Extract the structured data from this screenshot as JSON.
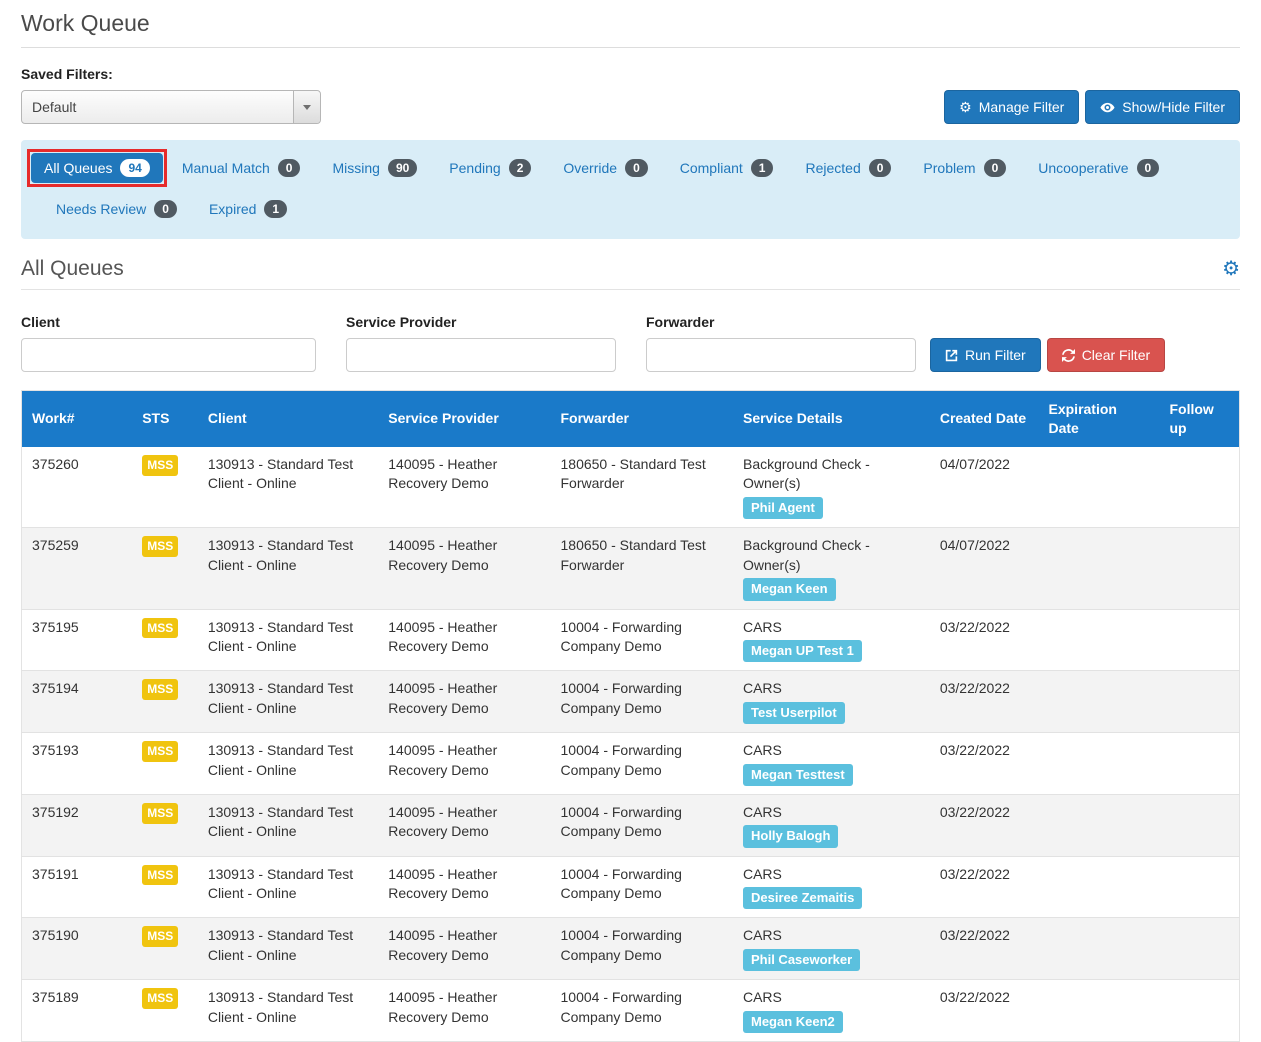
{
  "page": {
    "title": "Work Queue"
  },
  "saved_filters": {
    "label": "Saved Filters:",
    "selected": "Default"
  },
  "header_buttons": {
    "manage": "Manage Filter",
    "show_hide": "Show/Hide Filter"
  },
  "tabs": {
    "rows": [
      [
        {
          "label": "All Queues",
          "count": "94",
          "active": true,
          "highlight": true
        },
        {
          "label": "Manual Match",
          "count": "0"
        },
        {
          "label": "Missing",
          "count": "90"
        },
        {
          "label": "Pending",
          "count": "2"
        },
        {
          "label": "Override",
          "count": "0"
        },
        {
          "label": "Compliant",
          "count": "1"
        },
        {
          "label": "Rejected",
          "count": "0"
        },
        {
          "label": "Problem",
          "count": "0"
        },
        {
          "label": "Uncooperative",
          "count": "0"
        }
      ],
      [
        {
          "label": "Needs Review",
          "count": "0"
        },
        {
          "label": "Expired",
          "count": "1"
        }
      ]
    ]
  },
  "panel": {
    "title": "All Queues"
  },
  "filters": {
    "client_label": "Client",
    "client_value": "",
    "service_provider_label": "Service Provider",
    "service_provider_value": "",
    "forwarder_label": "Forwarder",
    "forwarder_value": "",
    "run_button": "Run Filter",
    "clear_button": "Clear Filter"
  },
  "table": {
    "columns": [
      "Work#",
      "STS",
      "Client",
      "Service Provider",
      "Forwarder",
      "Service Details",
      "Created Date",
      "Expiration Date",
      "Follow up"
    ],
    "rows": [
      {
        "work": "375260",
        "sts": "MSS",
        "client": "130913 - Standard Test Client - Online",
        "service_provider": "140095 - Heather Recovery Demo",
        "forwarder": "180650 - Standard Test Forwarder",
        "service": "Background Check - Owner(s)",
        "assignee": "Phil Agent",
        "created": "04/07/2022",
        "expiration": "",
        "follow_up": ""
      },
      {
        "work": "375259",
        "sts": "MSS",
        "client": "130913 - Standard Test Client - Online",
        "service_provider": "140095 - Heather Recovery Demo",
        "forwarder": "180650 - Standard Test Forwarder",
        "service": "Background Check - Owner(s)",
        "assignee": "Megan Keen",
        "created": "04/07/2022",
        "expiration": "",
        "follow_up": ""
      },
      {
        "work": "375195",
        "sts": "MSS",
        "client": "130913 - Standard Test Client - Online",
        "service_provider": "140095 - Heather Recovery Demo",
        "forwarder": "10004 - Forwarding Company Demo",
        "service": "CARS",
        "assignee": "Megan UP Test 1",
        "created": "03/22/2022",
        "expiration": "",
        "follow_up": ""
      },
      {
        "work": "375194",
        "sts": "MSS",
        "client": "130913 - Standard Test Client - Online",
        "service_provider": "140095 - Heather Recovery Demo",
        "forwarder": "10004 - Forwarding Company Demo",
        "service": "CARS",
        "assignee": "Test Userpilot",
        "created": "03/22/2022",
        "expiration": "",
        "follow_up": ""
      },
      {
        "work": "375193",
        "sts": "MSS",
        "client": "130913 - Standard Test Client - Online",
        "service_provider": "140095 - Heather Recovery Demo",
        "forwarder": "10004 - Forwarding Company Demo",
        "service": "CARS",
        "assignee": "Megan Testtest",
        "created": "03/22/2022",
        "expiration": "",
        "follow_up": ""
      },
      {
        "work": "375192",
        "sts": "MSS",
        "client": "130913 - Standard Test Client - Online",
        "service_provider": "140095 - Heather Recovery Demo",
        "forwarder": "10004 - Forwarding Company Demo",
        "service": "CARS",
        "assignee": "Holly Balogh",
        "created": "03/22/2022",
        "expiration": "",
        "follow_up": ""
      },
      {
        "work": "375191",
        "sts": "MSS",
        "client": "130913 - Standard Test Client - Online",
        "service_provider": "140095 - Heather Recovery Demo",
        "forwarder": "10004 - Forwarding Company Demo",
        "service": "CARS",
        "assignee": "Desiree Zemaitis",
        "created": "03/22/2022",
        "expiration": "",
        "follow_up": ""
      },
      {
        "work": "375190",
        "sts": "MSS",
        "client": "130913 - Standard Test Client - Online",
        "service_provider": "140095 - Heather Recovery Demo",
        "forwarder": "10004 - Forwarding Company Demo",
        "service": "CARS",
        "assignee": "Phil Caseworker",
        "created": "03/22/2022",
        "expiration": "",
        "follow_up": ""
      },
      {
        "work": "375189",
        "sts": "MSS",
        "client": "130913 - Standard Test Client - Online",
        "service_provider": "140095 - Heather Recovery Demo",
        "forwarder": "10004 - Forwarding Company Demo",
        "service": "CARS",
        "assignee": "Megan Keen2",
        "created": "03/22/2022",
        "expiration": "",
        "follow_up": ""
      }
    ]
  },
  "colors": {
    "accent_blue": "#2077bb",
    "table_header_blue": "#1a7ac9",
    "band_blue": "#d9edf7",
    "badge_dark": "#505a62",
    "sts_yellow": "#f0c40f",
    "assignee_blue": "#5bc0de",
    "danger_red": "#d9534f",
    "highlight_red": "#e62b2b"
  }
}
